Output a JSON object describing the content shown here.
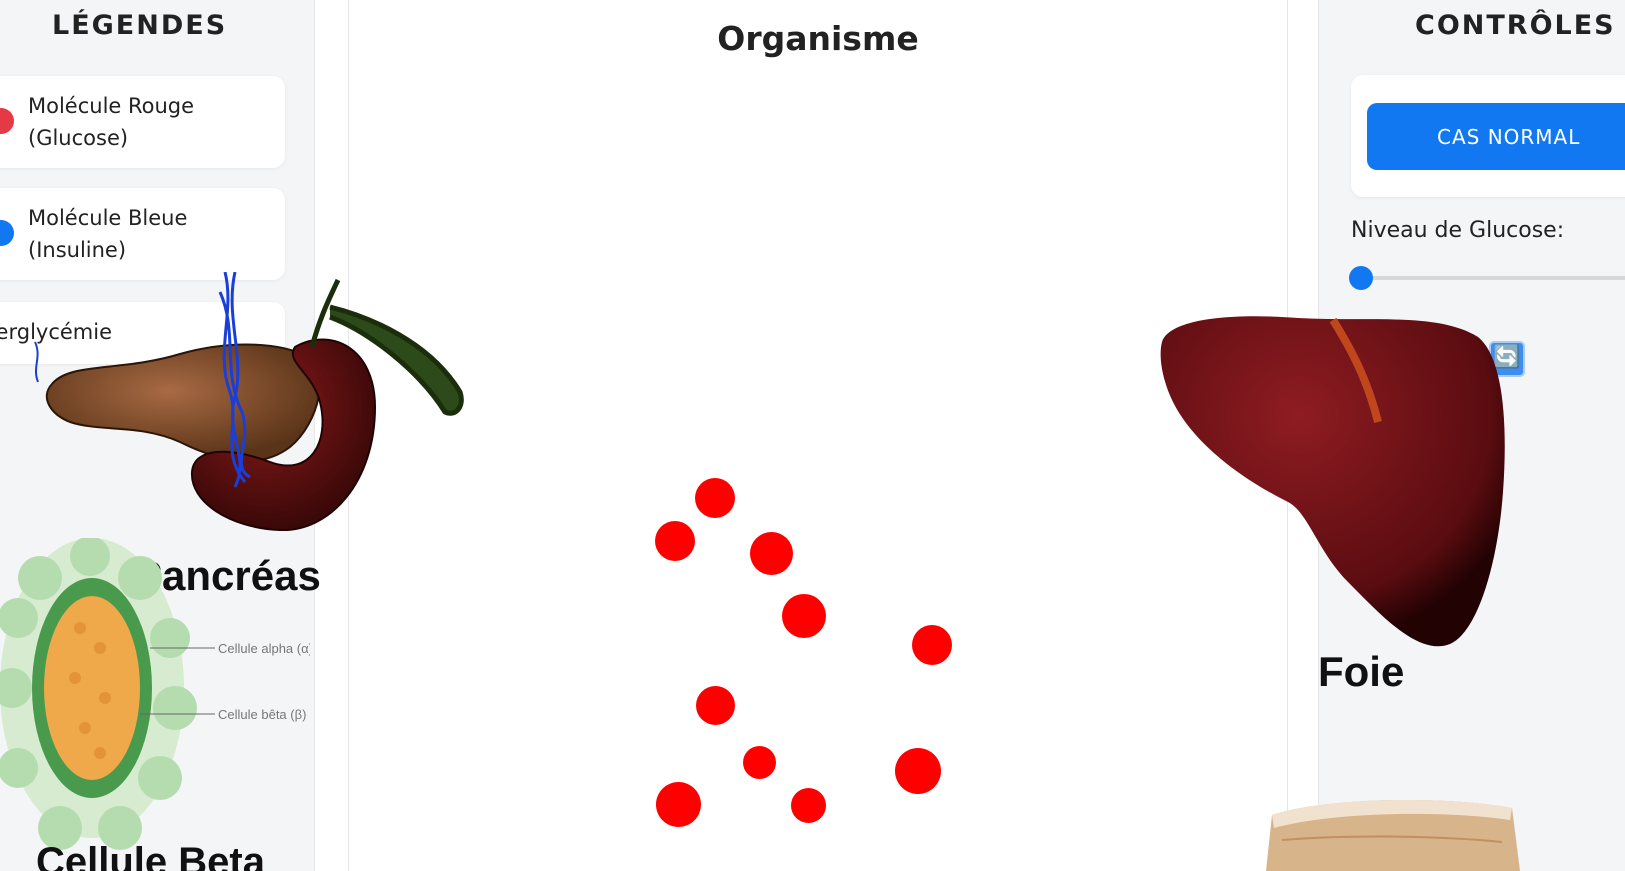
{
  "legend": {
    "title": "LÉGENDES",
    "items": [
      {
        "line1": "Molécule Rouge",
        "line2": "(Glucose)",
        "color": "#e63946"
      },
      {
        "line1": "Molécule Bleue",
        "line2": "(Insuline)",
        "color": "#1278f2"
      },
      {
        "line1": "Hyperglycémie",
        "line2": ""
      }
    ]
  },
  "stage": {
    "title": "Organisme",
    "glucose_color": "#ff0000"
  },
  "controls": {
    "title": "CONTRÔLES",
    "normal_button": "CAS NORMAL",
    "glucose_label": "Niveau de Glucose:",
    "glucose_level": 0,
    "refresh_icon": "🔄"
  },
  "organs": {
    "pancreas": "Pancréas",
    "liver": "Foie",
    "beta_cell": "Cellule Beta",
    "alpha_cell_callout": "Cellule alpha (α)",
    "beta_cell_callout": "Cellule bêta (β)"
  },
  "colors": {
    "accent": "#1278f2",
    "glucose": "#ff0000",
    "insulin": "#1a3fd8",
    "liver": "#7a1418",
    "pancreas": "#8a5535"
  }
}
